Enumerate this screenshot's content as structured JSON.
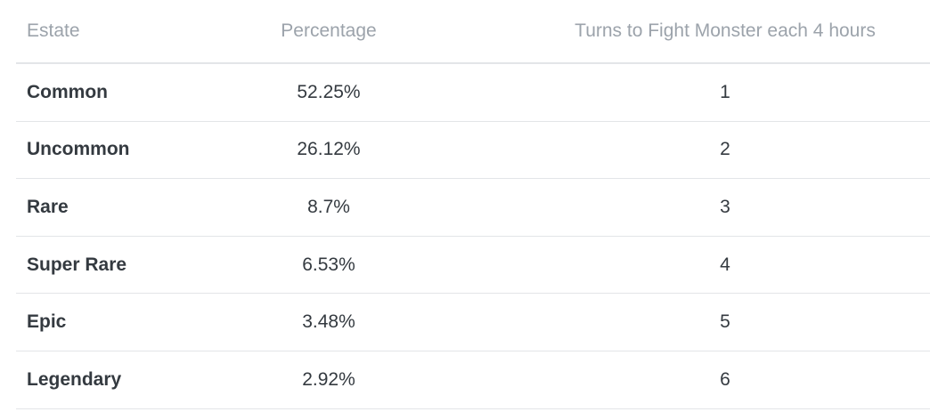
{
  "table": {
    "headers": [
      "Estate",
      "Percentage",
      "Turns to Fight Monster each 4 hours"
    ],
    "rows": [
      [
        "Common",
        "52.25%",
        1
      ],
      [
        "Uncommon",
        "26.12%",
        2
      ],
      [
        "Rare",
        "8.7%",
        3
      ],
      [
        "Super Rare",
        "6.53%",
        4
      ],
      [
        "Epic",
        "3.48%",
        5
      ],
      [
        "Legendary",
        "2.92%",
        6
      ]
    ]
  }
}
